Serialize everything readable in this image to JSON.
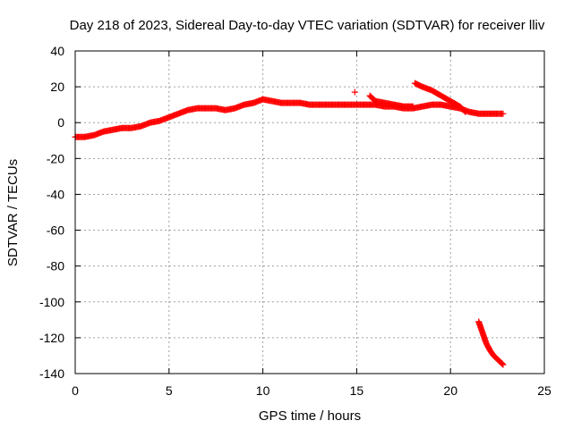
{
  "chart_data": {
    "type": "scatter",
    "title": "Day 218 of 2023, Sidereal Day-to-day VTEC variation (SDTVAR) for receiver lliv",
    "xlabel": "GPS time / hours",
    "ylabel": "SDTVAR / TECUs",
    "xlim": [
      0,
      25
    ],
    "ylim": [
      -140,
      40
    ],
    "xticks": [
      "0",
      "5",
      "10",
      "15",
      "20",
      "25"
    ],
    "yticks": [
      "40",
      "20",
      "0",
      "-20",
      "-40",
      "-60",
      "-80",
      "-100",
      "-120",
      "-140"
    ],
    "grid": true,
    "marker": "plus",
    "color": "#ff0000",
    "series": [
      {
        "x": [
          0,
          0.5,
          1.0,
          1.5,
          2.0,
          2.5,
          3.0,
          3.5,
          4.0,
          4.5,
          5.0,
          5.5,
          6.0,
          6.5,
          7.0,
          7.5,
          8.0,
          8.5,
          9.0,
          9.5,
          10.0,
          10.5,
          11.0,
          11.5,
          12.0,
          12.5,
          13.0,
          13.5,
          14.0,
          14.5,
          15.0,
          15.5,
          16.0,
          16.5,
          17.0,
          17.5,
          18.0,
          18.5,
          19.0,
          19.5,
          20.0,
          20.5,
          21.0,
          21.5,
          22.0,
          22.5,
          22.8
        ],
        "y": [
          -8,
          -8,
          -7,
          -5,
          -4,
          -3,
          -3,
          -2,
          0,
          1,
          3,
          5,
          7,
          8,
          8,
          8,
          7,
          8,
          10,
          11,
          13,
          12,
          11,
          11,
          11,
          10,
          10,
          10,
          10,
          10,
          10,
          10,
          10,
          9,
          9,
          8,
          8,
          9,
          10,
          10,
          9,
          8,
          6,
          5,
          5,
          5,
          5
        ]
      },
      {
        "x": [
          15.7,
          16.0,
          16.5,
          17.0,
          17.5,
          18.0
        ],
        "y": [
          15,
          12,
          11,
          10,
          9,
          9
        ]
      },
      {
        "x": [
          18.1,
          18.5,
          19.0,
          19.5,
          20.0,
          20.5,
          20.8
        ],
        "y": [
          22,
          20,
          18,
          15,
          12,
          9,
          6
        ]
      },
      {
        "x": [
          14.9
        ],
        "y": [
          17
        ]
      },
      {
        "x": [
          21.5,
          21.7,
          21.9,
          22.1,
          22.3,
          22.5,
          22.7,
          22.8
        ],
        "y": [
          -111,
          -117,
          -123,
          -127,
          -130,
          -132,
          -134,
          -135
        ]
      }
    ]
  }
}
